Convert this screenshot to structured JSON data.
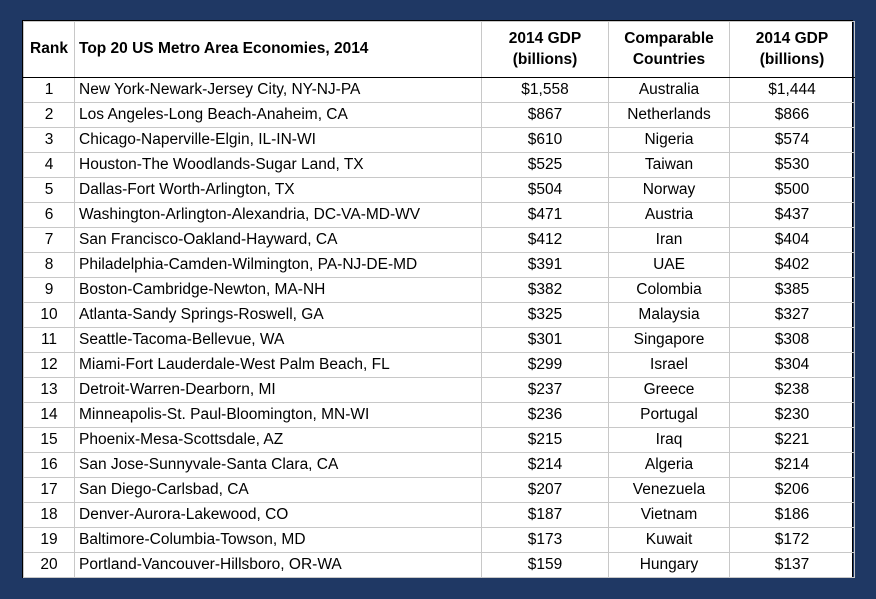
{
  "header": {
    "rank": "Rank",
    "metro": "Top 20 US Metro Area Economies, 2014",
    "gdp_line1": "2014 GDP",
    "gdp_line2": "(billions)",
    "country_line1": "Comparable",
    "country_line2": "Countries",
    "gdp2_line1": "2014 GDP",
    "gdp2_line2": "(billions)"
  },
  "rows": [
    {
      "rank": "1",
      "metro": "New York-Newark-Jersey City, NY-NJ-PA",
      "gdp": "$1,558",
      "country": "Australia",
      "country_gdp": "$1,444"
    },
    {
      "rank": "2",
      "metro": "Los Angeles-Long Beach-Anaheim, CA",
      "gdp": "$867",
      "country": "Netherlands",
      "country_gdp": "$866"
    },
    {
      "rank": "3",
      "metro": "Chicago-Naperville-Elgin, IL-IN-WI",
      "gdp": "$610",
      "country": "Nigeria",
      "country_gdp": "$574"
    },
    {
      "rank": "4",
      "metro": "Houston-The Woodlands-Sugar Land, TX",
      "gdp": "$525",
      "country": "Taiwan",
      "country_gdp": "$530"
    },
    {
      "rank": "5",
      "metro": "Dallas-Fort Worth-Arlington, TX",
      "gdp": "$504",
      "country": "Norway",
      "country_gdp": "$500"
    },
    {
      "rank": "6",
      "metro": "Washington-Arlington-Alexandria, DC-VA-MD-WV",
      "gdp": "$471",
      "country": "Austria",
      "country_gdp": "$437"
    },
    {
      "rank": "7",
      "metro": "San Francisco-Oakland-Hayward, CA",
      "gdp": "$412",
      "country": "Iran",
      "country_gdp": "$404"
    },
    {
      "rank": "8",
      "metro": "Philadelphia-Camden-Wilmington, PA-NJ-DE-MD",
      "gdp": "$391",
      "country": "UAE",
      "country_gdp": "$402"
    },
    {
      "rank": "9",
      "metro": "Boston-Cambridge-Newton, MA-NH",
      "gdp": "$382",
      "country": "Colombia",
      "country_gdp": "$385"
    },
    {
      "rank": "10",
      "metro": "Atlanta-Sandy Springs-Roswell, GA",
      "gdp": "$325",
      "country": "Malaysia",
      "country_gdp": "$327"
    },
    {
      "rank": "11",
      "metro": "Seattle-Tacoma-Bellevue, WA",
      "gdp": "$301",
      "country": "Singapore",
      "country_gdp": "$308"
    },
    {
      "rank": "12",
      "metro": "Miami-Fort Lauderdale-West Palm Beach, FL",
      "gdp": "$299",
      "country": "Israel",
      "country_gdp": "$304"
    },
    {
      "rank": "13",
      "metro": "Detroit-Warren-Dearborn, MI",
      "gdp": "$237",
      "country": "Greece",
      "country_gdp": "$238"
    },
    {
      "rank": "14",
      "metro": "Minneapolis-St. Paul-Bloomington, MN-WI",
      "gdp": "$236",
      "country": "Portugal",
      "country_gdp": "$230"
    },
    {
      "rank": "15",
      "metro": "Phoenix-Mesa-Scottsdale, AZ",
      "gdp": "$215",
      "country": "Iraq",
      "country_gdp": "$221"
    },
    {
      "rank": "16",
      "metro": "San Jose-Sunnyvale-Santa Clara, CA",
      "gdp": "$214",
      "country": "Algeria",
      "country_gdp": "$214"
    },
    {
      "rank": "17",
      "metro": "San Diego-Carlsbad, CA",
      "gdp": "$207",
      "country": "Venezuela",
      "country_gdp": "$206"
    },
    {
      "rank": "18",
      "metro": "Denver-Aurora-Lakewood, CO",
      "gdp": "$187",
      "country": "Vietnam",
      "country_gdp": "$186"
    },
    {
      "rank": "19",
      "metro": "Baltimore-Columbia-Towson, MD",
      "gdp": "$173",
      "country": "Kuwait",
      "country_gdp": "$172"
    },
    {
      "rank": "20",
      "metro": "Portland-Vancouver-Hillsboro, OR-WA",
      "gdp": "$159",
      "country": "Hungary",
      "country_gdp": "$137"
    }
  ]
}
